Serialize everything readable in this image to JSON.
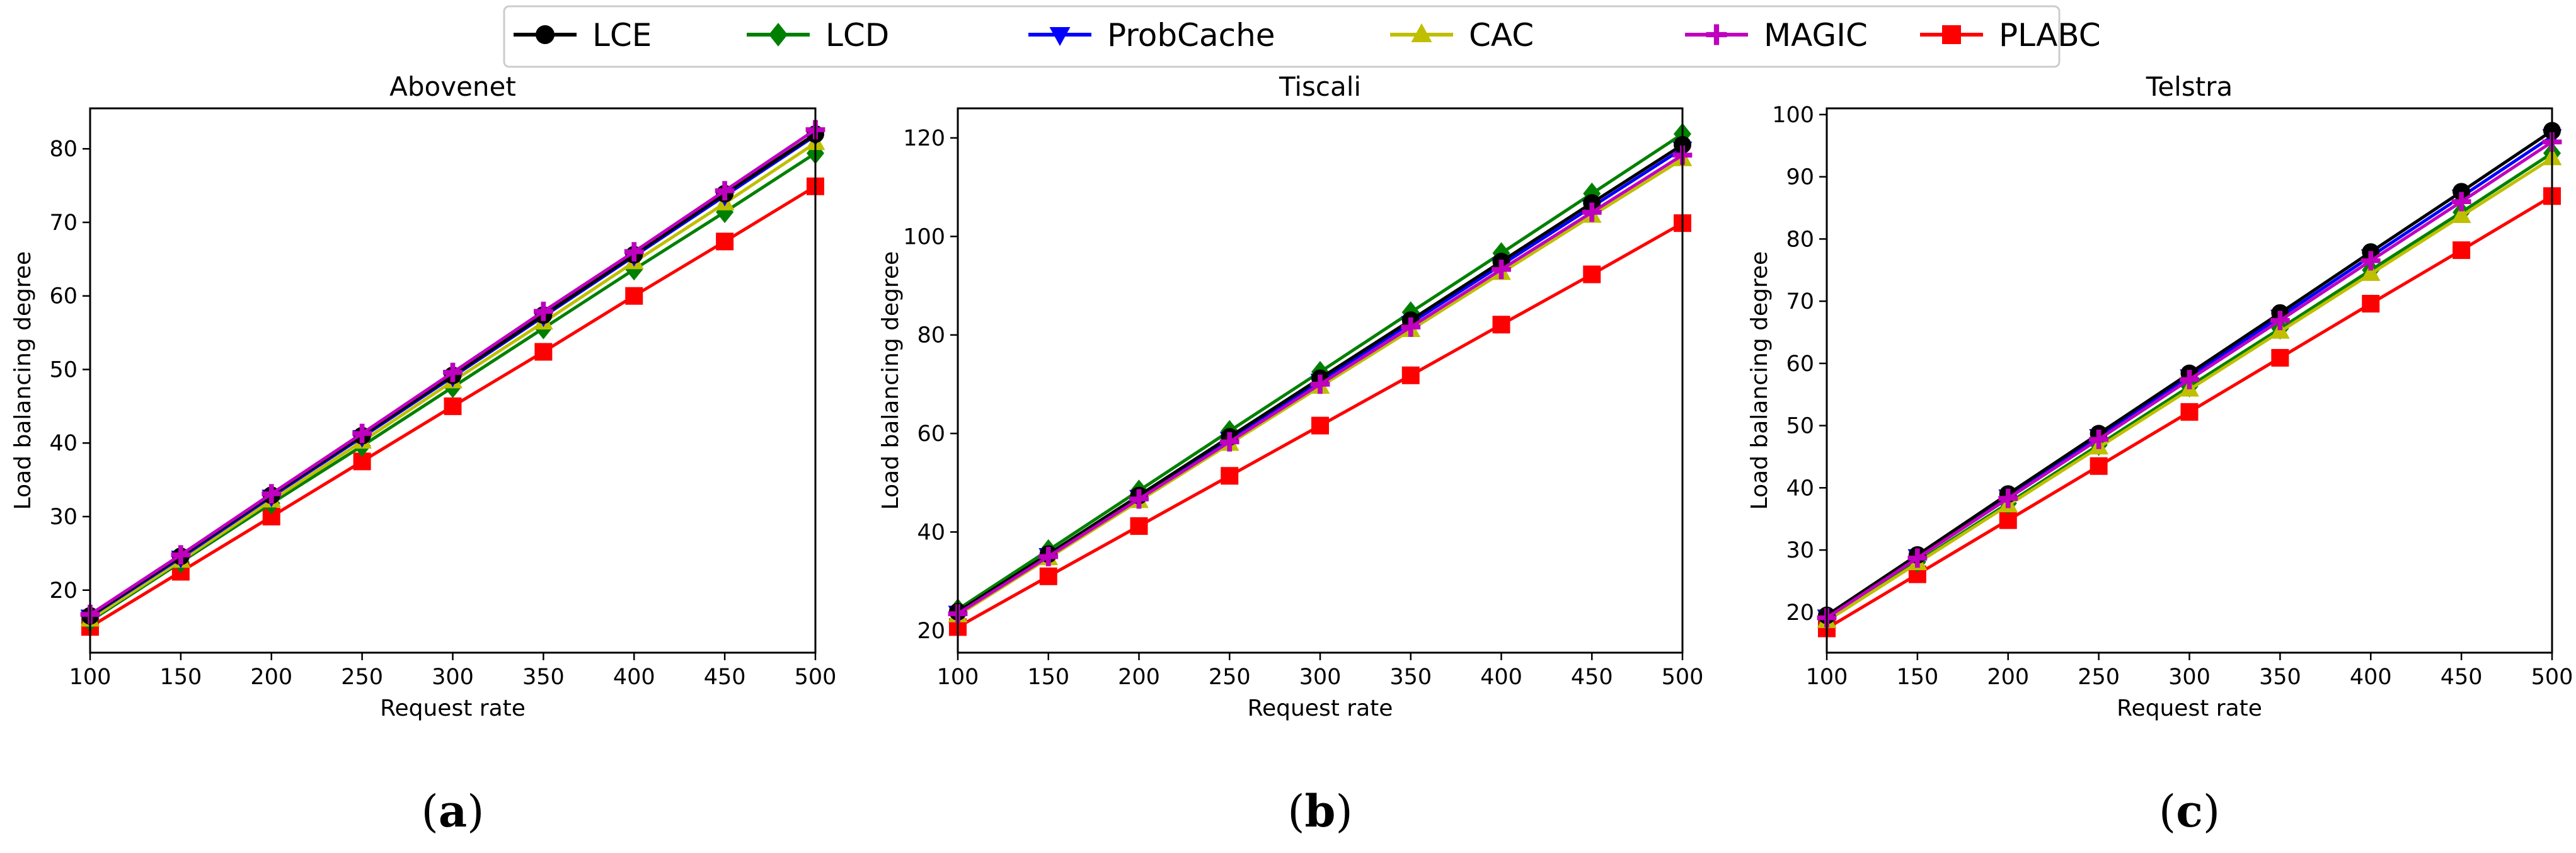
{
  "legend": [
    {
      "name": "LCE",
      "color": "#000000",
      "marker": "circle"
    },
    {
      "name": "LCD",
      "color": "#008000",
      "marker": "diamond"
    },
    {
      "name": "ProbCache",
      "color": "#0000ff",
      "marker": "tri_down"
    },
    {
      "name": "CAC",
      "color": "#bfbf00",
      "marker": "tri_up"
    },
    {
      "name": "MAGIC",
      "color": "#bf00bf",
      "marker": "plus"
    },
    {
      "name": "PLABC",
      "color": "#ff0000",
      "marker": "square"
    }
  ],
  "chart_data": [
    {
      "type": "line",
      "title": "Abovenet",
      "xlabel": "Request rate",
      "ylabel": "Load balancing degree",
      "sublabel": {
        "open": "(",
        "letter": "a",
        "close": ")"
      },
      "x": [
        100,
        150,
        200,
        250,
        300,
        350,
        400,
        450,
        500
      ],
      "xlim": [
        100,
        500
      ],
      "ylim": [
        11.5,
        85.5
      ],
      "xticks": [
        "100",
        "150",
        "200",
        "250",
        "300",
        "350",
        "400",
        "450",
        "500"
      ],
      "yticks": [
        "20",
        "30",
        "40",
        "50",
        "60",
        "70",
        "80"
      ],
      "series": [
        {
          "name": "LCE",
          "values": [
            16.5,
            24.6,
            32.9,
            41.0,
            49.2,
            57.4,
            65.6,
            73.9,
            82.0
          ]
        },
        {
          "name": "LCD",
          "values": [
            15.8,
            23.8,
            31.8,
            39.6,
            47.6,
            55.6,
            63.6,
            71.4,
            79.4
          ]
        },
        {
          "name": "ProbCache",
          "values": [
            16.4,
            24.4,
            32.7,
            40.8,
            49.0,
            57.2,
            65.4,
            73.6,
            81.8
          ]
        },
        {
          "name": "CAC",
          "values": [
            16.0,
            24.0,
            32.2,
            40.2,
            48.4,
            56.4,
            64.6,
            72.6,
            80.8
          ]
        },
        {
          "name": "MAGIC",
          "values": [
            16.7,
            24.8,
            33.1,
            41.3,
            49.6,
            57.9,
            66.0,
            74.3,
            82.6
          ]
        },
        {
          "name": "PLABC",
          "values": [
            15.0,
            22.5,
            30.0,
            37.5,
            45.0,
            52.4,
            60.0,
            67.4,
            74.9
          ]
        }
      ]
    },
    {
      "type": "line",
      "title": "Tiscali",
      "xlabel": "Request rate",
      "ylabel": "Load balancing degree",
      "sublabel": {
        "open": "(",
        "letter": "b",
        "close": ")"
      },
      "x": [
        100,
        150,
        200,
        250,
        300,
        350,
        400,
        450,
        500
      ],
      "xlim": [
        100,
        500
      ],
      "ylim": [
        15.5,
        126
      ],
      "xticks": [
        "100",
        "150",
        "200",
        "250",
        "300",
        "350",
        "400",
        "450",
        "500"
      ],
      "yticks": [
        "20",
        "40",
        "60",
        "80",
        "100",
        "120"
      ],
      "series": [
        {
          "name": "LCE",
          "values": [
            23.8,
            35.5,
            47.4,
            59.3,
            71.2,
            83.0,
            94.9,
            106.8,
            118.6
          ]
        },
        {
          "name": "LCD",
          "values": [
            24.3,
            36.3,
            48.4,
            60.5,
            72.5,
            84.6,
            96.6,
            108.7,
            120.8
          ]
        },
        {
          "name": "ProbCache",
          "values": [
            23.6,
            35.3,
            47.1,
            58.9,
            70.7,
            82.4,
            94.2,
            106.0,
            117.8
          ]
        },
        {
          "name": "CAC",
          "values": [
            23.1,
            34.7,
            46.3,
            57.9,
            69.5,
            81.0,
            92.6,
            104.2,
            115.7
          ]
        },
        {
          "name": "MAGIC",
          "values": [
            23.4,
            35.0,
            46.7,
            58.3,
            70.0,
            81.6,
            93.3,
            104.9,
            116.5
          ]
        },
        {
          "name": "PLABC",
          "values": [
            20.7,
            31.0,
            41.2,
            51.4,
            61.6,
            71.8,
            82.1,
            92.3,
            102.7
          ]
        }
      ]
    },
    {
      "type": "line",
      "title": "Telstra",
      "xlabel": "Request rate",
      "ylabel": "Load balancing degree",
      "sublabel": {
        "open": "(",
        "letter": "c",
        "close": ")"
      },
      "x": [
        100,
        150,
        200,
        250,
        300,
        350,
        400,
        450,
        500
      ],
      "xlim": [
        100,
        500
      ],
      "ylim": [
        13.5,
        101
      ],
      "xticks": [
        "100",
        "150",
        "200",
        "250",
        "300",
        "350",
        "400",
        "450",
        "500"
      ],
      "yticks": [
        "20",
        "30",
        "40",
        "50",
        "60",
        "70",
        "80",
        "90",
        "100"
      ],
      "series": [
        {
          "name": "LCE",
          "values": [
            19.5,
            29.2,
            39.0,
            48.7,
            58.4,
            68.1,
            77.9,
            87.6,
            97.4
          ]
        },
        {
          "name": "LCD",
          "values": [
            18.8,
            28.1,
            37.5,
            46.9,
            56.3,
            65.6,
            75.0,
            84.3,
            93.8
          ]
        },
        {
          "name": "ProbCache",
          "values": [
            19.3,
            29.0,
            38.6,
            48.3,
            57.9,
            67.5,
            77.2,
            86.8,
            96.5
          ]
        },
        {
          "name": "CAC",
          "values": [
            18.6,
            27.9,
            37.2,
            46.5,
            55.8,
            65.1,
            74.4,
            83.7,
            93.0
          ]
        },
        {
          "name": "MAGIC",
          "values": [
            19.1,
            28.7,
            38.3,
            47.8,
            57.4,
            66.9,
            76.5,
            86.0,
            95.6
          ]
        },
        {
          "name": "PLABC",
          "values": [
            17.4,
            26.1,
            34.8,
            43.5,
            52.2,
            60.9,
            69.6,
            78.2,
            86.9
          ]
        }
      ]
    }
  ]
}
